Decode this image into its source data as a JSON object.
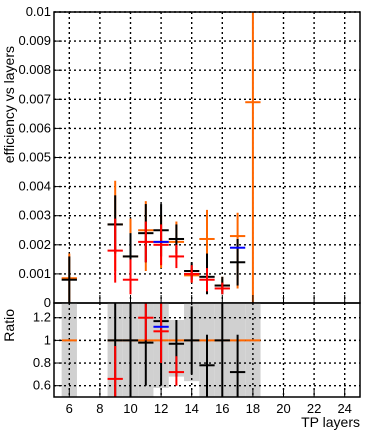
{
  "chart_data": {
    "type": "scatter",
    "top_panel": {
      "ylabel": "efficiency vs layers",
      "ylim": [
        0,
        0.01
      ],
      "yticks": [
        {
          "v": 0,
          "label": "0"
        },
        {
          "v": 0.001,
          "label": "0.001"
        },
        {
          "v": 0.002,
          "label": "0.002"
        },
        {
          "v": 0.003,
          "label": "0.003"
        },
        {
          "v": 0.004,
          "label": "0.004"
        },
        {
          "v": 0.005,
          "label": "0.005"
        },
        {
          "v": 0.006,
          "label": "0.006"
        },
        {
          "v": 0.007,
          "label": "0.007"
        },
        {
          "v": 0.008,
          "label": "0.008"
        },
        {
          "v": 0.009,
          "label": "0.009"
        },
        {
          "v": 0.01,
          "label": "0.01"
        }
      ],
      "grid": true,
      "series": [
        {
          "color": "#ff6600",
          "points": [
            {
              "x": 6,
              "y": 0.00085,
              "lo": 0.0,
              "hi": 0.0017
            },
            {
              "x": 9,
              "y": 0.0027,
              "lo": 0.0011,
              "hi": 0.0042
            },
            {
              "x": 10,
              "y": 0.0016,
              "lo": 0.0004,
              "hi": 0.0029
            },
            {
              "x": 11,
              "y": 0.0025,
              "lo": 0.0011,
              "hi": 0.0035
            },
            {
              "x": 12,
              "y": 0.0021,
              "lo": 0.0012,
              "hi": 0.003
            },
            {
              "x": 13,
              "y": 0.0021,
              "lo": 0.0015,
              "hi": 0.0028
            },
            {
              "x": 14,
              "y": 0.00095,
              "lo": 0.0007,
              "hi": 0.0012
            },
            {
              "x": 15,
              "y": 0.0022,
              "lo": 0.0004,
              "hi": 0.0032
            },
            {
              "x": 16,
              "y": 0.0006,
              "lo": 0.0004,
              "hi": 0.0009
            },
            {
              "x": 17,
              "y": 0.0023,
              "lo": 0.0005,
              "hi": 0.0031
            },
            {
              "x": 18,
              "y": 0.0069,
              "lo": 0.0,
              "hi": 0.01
            }
          ]
        },
        {
          "color": "#000000",
          "points": [
            {
              "x": 6,
              "y": 0.0008,
              "lo": 0.0,
              "hi": 0.0016
            },
            {
              "x": 9,
              "y": 0.0027,
              "lo": 0.0017,
              "hi": 0.0037
            },
            {
              "x": 10,
              "y": 0.0016,
              "lo": 0.0008,
              "hi": 0.0024
            },
            {
              "x": 11,
              "y": 0.0024,
              "lo": 0.0014,
              "hi": 0.0034
            },
            {
              "x": 12,
              "y": 0.0025,
              "lo": 0.0016,
              "hi": 0.0034
            },
            {
              "x": 13,
              "y": 0.0022,
              "lo": 0.0017,
              "hi": 0.0027
            },
            {
              "x": 14,
              "y": 0.0011,
              "lo": 0.0008,
              "hi": 0.0014
            },
            {
              "x": 15,
              "y": 0.0009,
              "lo": 0.0003,
              "hi": 0.0017
            },
            {
              "x": 16,
              "y": 0.0006,
              "lo": 0.0003,
              "hi": 0.0009
            },
            {
              "x": 17,
              "y": 0.0014,
              "lo": 0.0006,
              "hi": 0.0022
            }
          ]
        },
        {
          "color": "#ff0000",
          "points": [
            {
              "x": 9,
              "y": 0.0018,
              "lo": 0.0007,
              "hi": 0.0029
            },
            {
              "x": 10,
              "y": 0.0008,
              "lo": 0.0003,
              "hi": 0.0015
            },
            {
              "x": 11,
              "y": 0.0021,
              "lo": 0.0014,
              "hi": 0.0028
            },
            {
              "x": 12,
              "y": 0.002,
              "lo": 0.0013,
              "hi": 0.0027
            },
            {
              "x": 13,
              "y": 0.0016,
              "lo": 0.0012,
              "hi": 0.002
            },
            {
              "x": 14,
              "y": 0.001,
              "lo": 0.0007,
              "hi": 0.0013
            },
            {
              "x": 15,
              "y": 0.0008,
              "lo": 0.0004,
              "hi": 0.0012
            },
            {
              "x": 16,
              "y": 0.0005,
              "lo": 0.0003,
              "hi": 0.0007
            }
          ]
        },
        {
          "color": "#0000ff",
          "points": [
            {
              "x": 12,
              "y": 0.0021
            },
            {
              "x": 17,
              "y": 0.0019
            }
          ]
        }
      ]
    },
    "bottom_panel": {
      "ylabel": "Ratio",
      "ylim": [
        0.5,
        1.33
      ],
      "yticks": [
        {
          "v": 0.6,
          "label": "0.6"
        },
        {
          "v": 0.8,
          "label": "0.8"
        },
        {
          "v": 1.0,
          "label": "1"
        },
        {
          "v": 1.2,
          "label": "1.2"
        }
      ],
      "grid": true,
      "band_color": "#d0d0d0",
      "bands": [
        {
          "x": 6,
          "lo": 0.5,
          "hi": 1.33
        },
        {
          "x": 9,
          "lo": 0.5,
          "hi": 1.33
        },
        {
          "x": 10,
          "lo": 0.5,
          "hi": 1.33
        },
        {
          "x": 11,
          "lo": 0.5,
          "hi": 1.33
        },
        {
          "x": 12,
          "lo": 0.58,
          "hi": 1.33
        },
        {
          "x": 13,
          "lo": 0.68,
          "hi": 1.18
        },
        {
          "x": 14,
          "lo": 0.64,
          "hi": 1.33
        },
        {
          "x": 15,
          "lo": 0.5,
          "hi": 1.33
        },
        {
          "x": 16,
          "lo": 0.5,
          "hi": 1.33
        },
        {
          "x": 17,
          "lo": 0.5,
          "hi": 1.33
        },
        {
          "x": 18,
          "lo": 0.5,
          "hi": 1.33
        }
      ],
      "series": [
        {
          "color": "#ff6600",
          "points": [
            {
              "x": 6,
              "y": 1.0
            },
            {
              "x": 9,
              "y": 1.0
            },
            {
              "x": 10,
              "y": 1.0
            },
            {
              "x": 11,
              "y": 1.0
            },
            {
              "x": 12,
              "y": 1.0
            },
            {
              "x": 13,
              "y": 1.0
            },
            {
              "x": 14,
              "y": 1.0
            },
            {
              "x": 15,
              "y": 1.0
            },
            {
              "x": 16,
              "y": 1.0
            },
            {
              "x": 17,
              "y": 1.0
            },
            {
              "x": 18,
              "y": 1.0
            }
          ]
        },
        {
          "color": "#000000",
          "points": [
            {
              "x": 9,
              "y": 1.0,
              "lo": 0.5,
              "hi": 1.33
            },
            {
              "x": 10,
              "y": 1.0,
              "lo": 0.5,
              "hi": 1.33
            },
            {
              "x": 11,
              "y": 0.98,
              "lo": 0.6,
              "hi": 1.33
            },
            {
              "x": 12,
              "y": 1.17,
              "lo": 0.6,
              "hi": 1.33
            },
            {
              "x": 13,
              "y": 0.97,
              "lo": 0.68,
              "hi": 1.18
            },
            {
              "x": 14,
              "y": 1.0,
              "lo": 0.7,
              "hi": 1.3
            },
            {
              "x": 15,
              "y": 0.78,
              "lo": 0.5,
              "hi": 1.05
            },
            {
              "x": 16,
              "y": 1.0,
              "lo": 0.5,
              "hi": 1.33
            },
            {
              "x": 17,
              "y": 0.72,
              "lo": 0.5,
              "hi": 1.05
            }
          ]
        },
        {
          "color": "#ff0000",
          "points": [
            {
              "x": 9,
              "y": 0.66,
              "lo": 0.5,
              "hi": 0.95
            },
            {
              "x": 11,
              "y": 1.2,
              "lo": 1.0,
              "hi": 1.33
            },
            {
              "x": 12,
              "y": 1.08,
              "lo": 0.8,
              "hi": 1.33
            },
            {
              "x": 13,
              "y": 0.72,
              "lo": 0.6,
              "hi": 0.86
            }
          ]
        },
        {
          "color": "#0000ff",
          "points": [
            {
              "x": 12,
              "y": 1.12
            }
          ]
        }
      ]
    },
    "xlabel": "TP layers",
    "xlim": [
      5,
      25
    ],
    "xticks": [
      {
        "v": 6,
        "label": "6"
      },
      {
        "v": 8,
        "label": "8"
      },
      {
        "v": 10,
        "label": "10"
      },
      {
        "v": 12,
        "label": "12"
      },
      {
        "v": 14,
        "label": "14"
      },
      {
        "v": 16,
        "label": "16"
      },
      {
        "v": 18,
        "label": "18"
      },
      {
        "v": 20,
        "label": "20"
      },
      {
        "v": 22,
        "label": "22"
      },
      {
        "v": 24,
        "label": "24"
      }
    ]
  }
}
